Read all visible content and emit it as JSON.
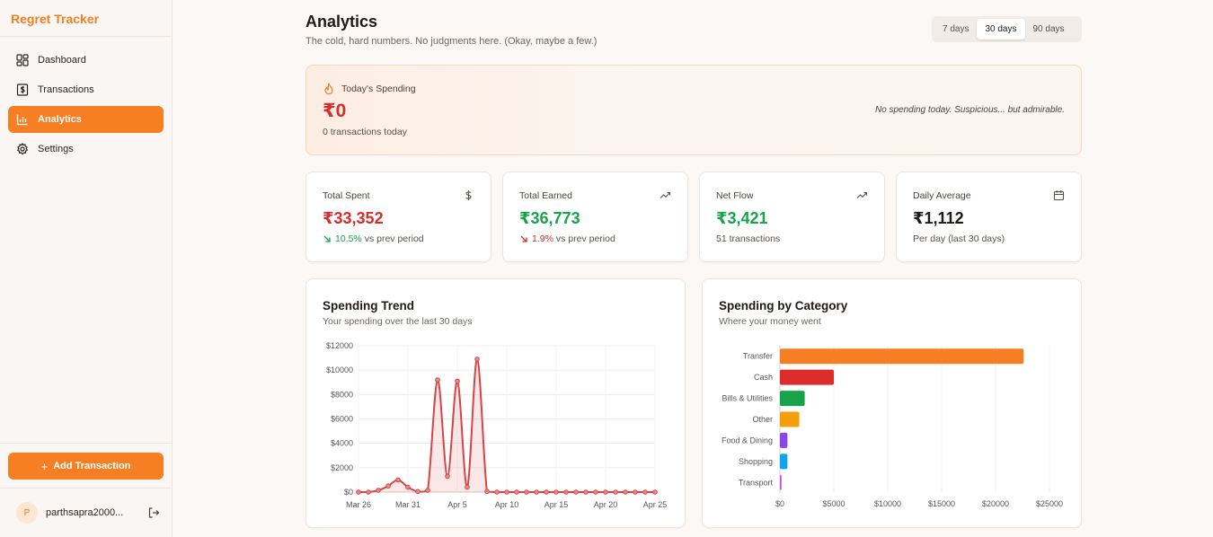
{
  "sidebar": {
    "brand": "Regret Tracker",
    "items": [
      {
        "label": "Dashboard",
        "icon": "dashboard-icon"
      },
      {
        "label": "Transactions",
        "icon": "dollar-icon"
      },
      {
        "label": "Analytics",
        "icon": "bar-chart-icon",
        "active": true
      },
      {
        "label": "Settings",
        "icon": "gear-icon"
      }
    ],
    "add_button": "Add Transaction",
    "user": {
      "initial": "P",
      "name": "parthsapra2000..."
    }
  },
  "header": {
    "title": "Analytics",
    "subtitle": "The cold, hard numbers. No judgments here. (Okay, maybe a few.)",
    "ranges": [
      "7 days",
      "30 days",
      "90 days"
    ],
    "active_range": "30 days"
  },
  "today": {
    "label": "Today's Spending",
    "value": "₹0",
    "count": "0 transactions today",
    "note": "No spending today. Suspicious... but admirable."
  },
  "stats": [
    {
      "label": "Total Spent",
      "value": "₹33,352",
      "change": "10.5%",
      "change_suffix": "vs prev period",
      "icon": "dollar-icon",
      "value_color": "#d62c2c",
      "change_color": "#17a34a"
    },
    {
      "label": "Total Earned",
      "value": "₹36,773",
      "change": "1.9%",
      "change_suffix": "vs prev period",
      "icon": "trending-up-icon",
      "value_color": "#17a34a",
      "change_color": "#d62c2c"
    },
    {
      "label": "Net Flow",
      "value": "₹3,421",
      "sub": "51 transactions",
      "icon": "trending-up-icon",
      "value_color": "#17a34a"
    },
    {
      "label": "Daily Average",
      "value": "₹1,112",
      "sub": "Per day (last 30 days)",
      "icon": "calendar-icon",
      "value_color": "#1f1a17"
    }
  ],
  "trend": {
    "title": "Spending Trend",
    "subtitle": "Your spending over the last 30 days"
  },
  "category": {
    "title": "Spending by Category",
    "subtitle": "Where your money went"
  },
  "chart_data": [
    {
      "type": "area",
      "title": "Spending Trend",
      "x": [
        "Mar 26",
        "Mar 27",
        "Mar 28",
        "Mar 29",
        "Mar 30",
        "Mar 31",
        "Apr 1",
        "Apr 2",
        "Apr 3",
        "Apr 4",
        "Apr 5",
        "Apr 6",
        "Apr 7",
        "Apr 8",
        "Apr 9",
        "Apr 10",
        "Apr 11",
        "Apr 12",
        "Apr 13",
        "Apr 14",
        "Apr 15",
        "Apr 16",
        "Apr 17",
        "Apr 18",
        "Apr 19",
        "Apr 20",
        "Apr 21",
        "Apr 22",
        "Apr 23",
        "Apr 24",
        "Apr 25"
      ],
      "values": [
        0,
        0,
        150,
        500,
        1000,
        400,
        50,
        150,
        9200,
        1300,
        9100,
        400,
        10900,
        50,
        0,
        0,
        0,
        0,
        0,
        0,
        0,
        0,
        0,
        0,
        0,
        0,
        0,
        0,
        0,
        0,
        0
      ],
      "xticks": [
        "Mar 26",
        "Mar 31",
        "Apr 5",
        "Apr 10",
        "Apr 15",
        "Apr 20",
        "Apr 25"
      ],
      "yticks": [
        "$0",
        "$2000",
        "$4000",
        "$6000",
        "$8000",
        "$10000",
        "$12000"
      ],
      "ylim": [
        0,
        12000
      ],
      "grid": true,
      "color": "#d64545"
    },
    {
      "type": "bar",
      "orientation": "horizontal",
      "title": "Spending by Category",
      "categories": [
        "Transfer",
        "Cash",
        "Bills & Utilities",
        "Other",
        "Food & Dining",
        "Shopping",
        "Transport"
      ],
      "values": [
        22600,
        5000,
        2300,
        1800,
        700,
        700,
        150
      ],
      "colors": [
        "#f57f22",
        "#dc2c2c",
        "#16a34a",
        "#f59e0b",
        "#8b45e8",
        "#0ea5e9",
        "#d946ef"
      ],
      "xticks": [
        "$0",
        "$5000",
        "$10000",
        "$15000",
        "$20000",
        "$25000"
      ],
      "xlim": [
        0,
        25000
      ],
      "grid": true
    }
  ]
}
